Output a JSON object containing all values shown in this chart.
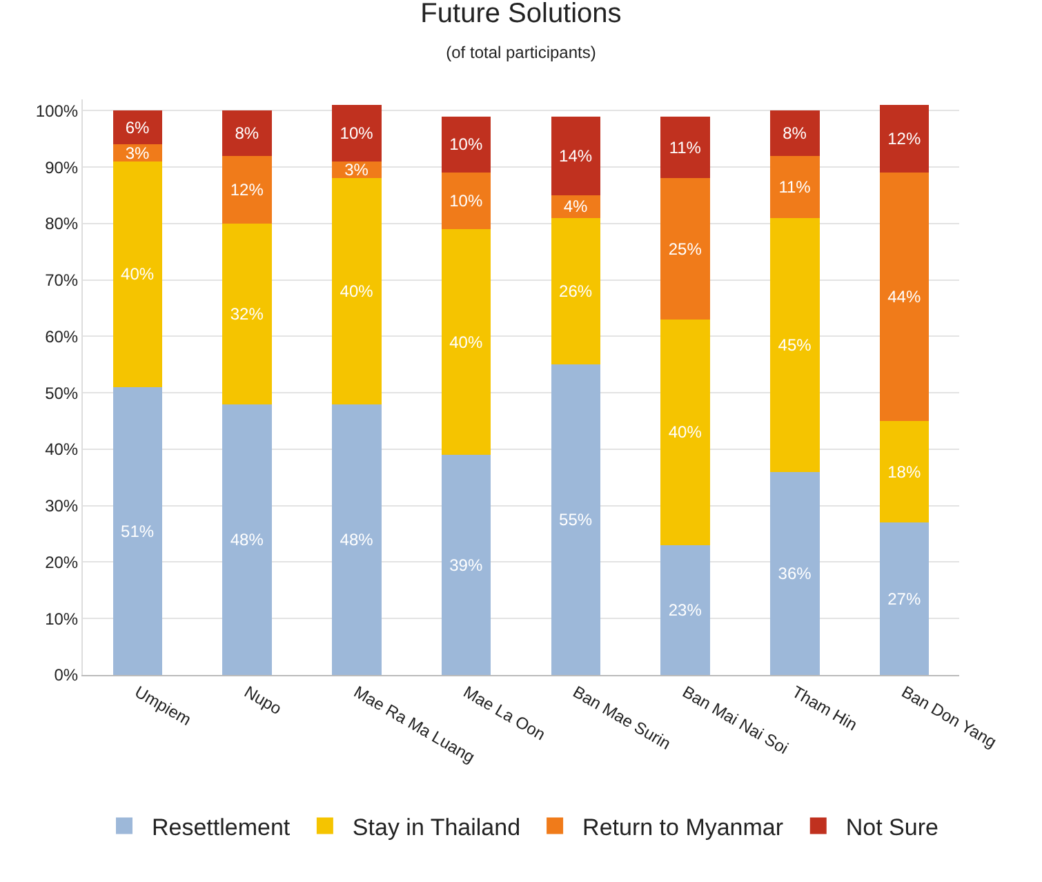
{
  "chart_data": {
    "type": "bar",
    "title": "Future Solutions",
    "subtitle": "(of total participants)",
    "stacked": true,
    "grid": "y",
    "legend": "bottom",
    "categories": [
      "Umpiem",
      "Nupo",
      "Mae Ra Ma Luang",
      "Mae La Oon",
      "Ban Mae Surin",
      "Ban Mai Nai Soi",
      "Tham Hin",
      "Ban Don Yang"
    ],
    "series": [
      {
        "name": "Resettlement",
        "color": "#9db8d9",
        "values": [
          51,
          48,
          48,
          39,
          55,
          23,
          36,
          27
        ],
        "value_labels": [
          "51%",
          "48%",
          "48%",
          "39%",
          "55%",
          "23%",
          "36%",
          "27%"
        ]
      },
      {
        "name": "Stay in Thailand",
        "color": "#f5c400",
        "values": [
          40,
          32,
          40,
          40,
          26,
          40,
          45,
          18
        ],
        "value_labels": [
          "40%",
          "32%",
          "40%",
          "40%",
          "26%",
          "40%",
          "45%",
          "18%"
        ]
      },
      {
        "name": "Return to Myanmar",
        "color": "#f07b1a",
        "values": [
          3,
          12,
          3,
          10,
          4,
          25,
          11,
          44
        ],
        "value_labels": [
          "3%",
          "12%",
          "3%",
          "10%",
          "4%",
          "25%",
          "11%",
          "44%"
        ]
      },
      {
        "name": "Not Sure",
        "color": "#c0311f",
        "values": [
          6,
          8,
          10,
          10,
          14,
          11,
          8,
          12
        ],
        "value_labels": [
          "6%",
          "8%",
          "10%",
          "10%",
          "14%",
          "11%",
          "8%",
          "12%"
        ]
      }
    ],
    "ylim": [
      0,
      102
    ],
    "yticks": [
      {
        "value": 0,
        "label": "0%"
      },
      {
        "value": 10,
        "label": "10%"
      },
      {
        "value": 20,
        "label": "20%"
      },
      {
        "value": 30,
        "label": "30%"
      },
      {
        "value": 40,
        "label": "40%"
      },
      {
        "value": 50,
        "label": "50%"
      },
      {
        "value": 60,
        "label": "60%"
      },
      {
        "value": 70,
        "label": "70%"
      },
      {
        "value": 80,
        "label": "80%"
      },
      {
        "value": 90,
        "label": "90%"
      },
      {
        "value": 100,
        "label": "100%"
      }
    ]
  }
}
